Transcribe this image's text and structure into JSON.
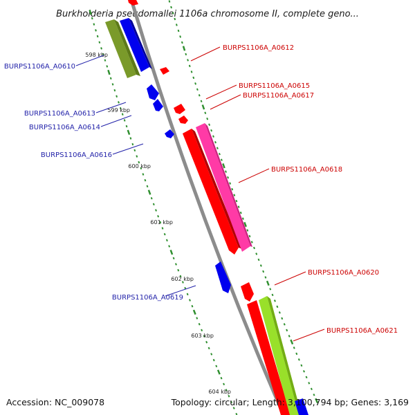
{
  "title": "Burkholderia pseudomallei 1106a chromosome II, complete geno...",
  "footer": {
    "accession": "Accession: NC_009078",
    "topology": "Topology: circular; Length: 3,100,794 bp; Genes: 3,169"
  },
  "colors": {
    "backbone": "#8c8c8c",
    "label_forward": "#cc0000",
    "label_reverse": "#1f1fa8",
    "tick": "#2f8f2f",
    "red_gene": "#ff0000",
    "blue_gene": "#0000ee",
    "olive_gene": "#7a9a2a",
    "pink_gene": "#ff3aa6",
    "lime_gene": "#99e02a"
  },
  "kbp_labels": [
    "598 kbp",
    "599 kbp",
    "600 kbp",
    "601 kbp",
    "602 kbp",
    "603 kbp",
    "604 kbp"
  ],
  "gene_labels": [
    {
      "text": "BURPS1106A_A0610",
      "strand": "reverse"
    },
    {
      "text": "BURPS1106A_A0612",
      "strand": "forward"
    },
    {
      "text": "BURPS1106A_A0613",
      "strand": "reverse"
    },
    {
      "text": "BURPS1106A_A0614",
      "strand": "reverse"
    },
    {
      "text": "BURPS1106A_A0615",
      "strand": "forward"
    },
    {
      "text": "BURPS1106A_A0617",
      "strand": "forward"
    },
    {
      "text": "BURPS1106A_A0616",
      "strand": "reverse"
    },
    {
      "text": "BURPS1106A_A0618",
      "strand": "forward"
    },
    {
      "text": "BURPS1106A_A0619",
      "strand": "reverse"
    },
    {
      "text": "BURPS1106A_A0620",
      "strand": "forward"
    },
    {
      "text": "BURPS1106A_A0621",
      "strand": "forward"
    }
  ]
}
